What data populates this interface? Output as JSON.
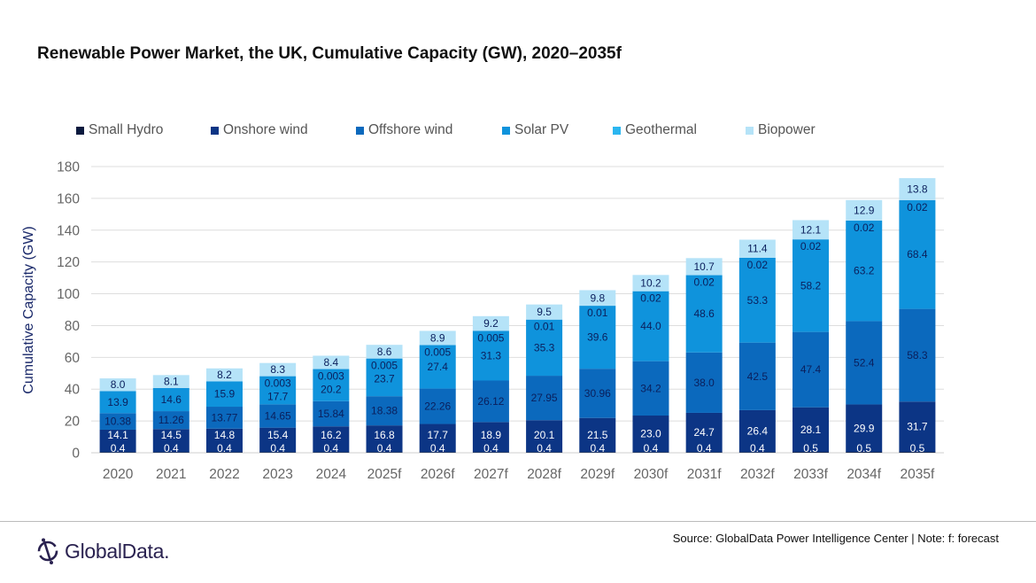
{
  "chart_data": {
    "type": "bar",
    "stacked": true,
    "title": "Renewable Power Market, the UK, Cumulative Capacity (GW), 2020–2035f",
    "xlabel": "",
    "ylabel": "Cumulative Capacity (GW)",
    "ylim": [
      0,
      180
    ],
    "yticks": [
      0,
      20,
      40,
      60,
      80,
      100,
      120,
      140,
      160,
      180
    ],
    "grid": true,
    "legend_position": "top",
    "categories": [
      "2020",
      "2021",
      "2022",
      "2023",
      "2024",
      "2025f",
      "2026f",
      "2027f",
      "2028f",
      "2029f",
      "2030f",
      "2031f",
      "2032f",
      "2033f",
      "2034f",
      "2035f"
    ],
    "series": [
      {
        "name": "Small Hydro",
        "color": "#0b1a3e",
        "decimals": 1,
        "values": [
          0.4,
          0.4,
          0.4,
          0.4,
          0.4,
          0.4,
          0.4,
          0.4,
          0.4,
          0.4,
          0.4,
          0.4,
          0.4,
          0.5,
          0.5,
          0.5
        ]
      },
      {
        "name": "Onshore wind",
        "color": "#0c3585",
        "decimals": 1,
        "values": [
          14.1,
          14.5,
          14.8,
          15.4,
          16.2,
          16.8,
          17.7,
          18.9,
          20.1,
          21.5,
          23.0,
          24.7,
          26.4,
          28.1,
          29.9,
          31.7
        ]
      },
      {
        "name": "Offshore wind",
        "color": "#0b69bd",
        "decimals": [
          2,
          2,
          2,
          2,
          2,
          2,
          2,
          2,
          2,
          2,
          1,
          1,
          1,
          1,
          1,
          1
        ],
        "values": [
          10.38,
          11.26,
          13.77,
          14.65,
          15.84,
          18.38,
          22.26,
          26.12,
          27.95,
          30.96,
          34.2,
          38.0,
          42.5,
          47.4,
          52.4,
          58.3
        ]
      },
      {
        "name": "Solar PV",
        "color": "#0f93dc",
        "decimals": 1,
        "values": [
          13.9,
          14.6,
          15.9,
          17.7,
          20.2,
          23.7,
          27.4,
          31.3,
          35.3,
          39.6,
          44.0,
          48.6,
          53.3,
          58.2,
          63.2,
          68.4
        ]
      },
      {
        "name": "Geothermal",
        "color": "#2bb6f0",
        "decimals": null,
        "values": [
          null,
          null,
          null,
          0.003,
          0.003,
          0.005,
          0.005,
          0.005,
          0.01,
          0.01,
          0.02,
          0.02,
          0.02,
          0.02,
          0.02,
          0.02
        ]
      },
      {
        "name": "Biopower",
        "color": "#b5e3f8",
        "decimals": 1,
        "values": [
          8.0,
          8.1,
          8.2,
          8.3,
          8.4,
          8.6,
          8.9,
          9.2,
          9.5,
          9.8,
          10.2,
          10.7,
          11.4,
          12.1,
          12.9,
          13.8
        ]
      }
    ]
  },
  "footer": {
    "source": "Source: GlobalData Power Intelligence Center | Note: f: forecast",
    "logo_text": "GlobalData."
  }
}
